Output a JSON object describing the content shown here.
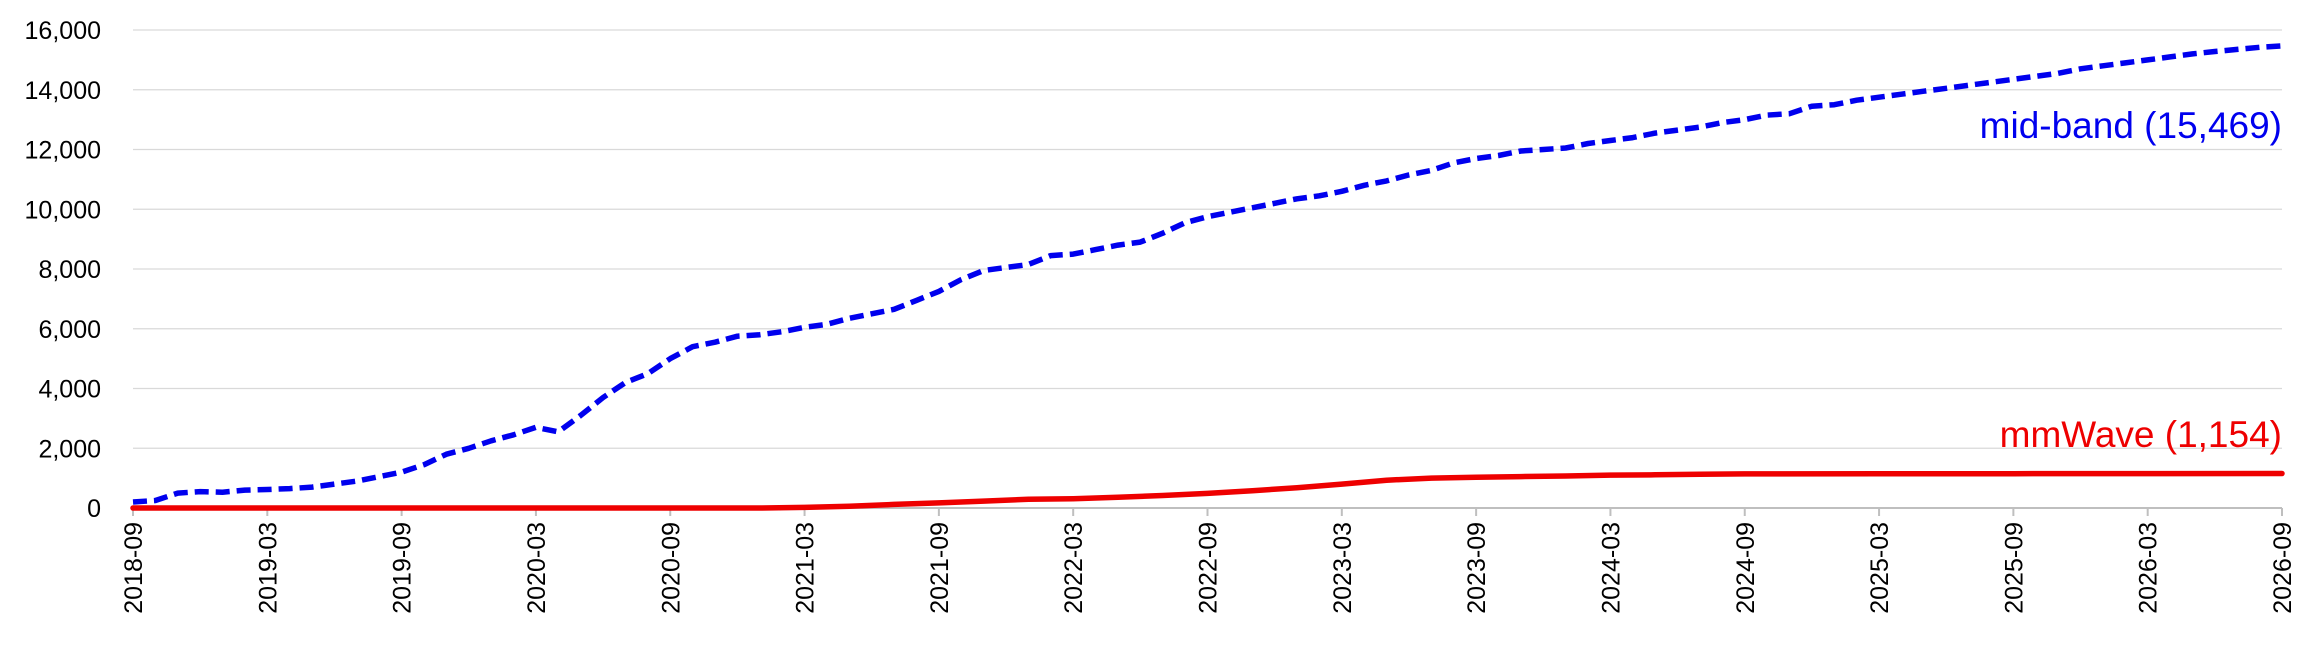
{
  "chart_data": {
    "type": "line",
    "title": "",
    "xlabel": "",
    "ylabel": "",
    "ylim": [
      0,
      16000
    ],
    "xlim": [
      "2018-09",
      "2026-09"
    ],
    "grid": "horizontal",
    "legend": "none",
    "y_ticks": [
      "0",
      "2,000",
      "4,000",
      "6,000",
      "8,000",
      "10,000",
      "12,000",
      "14,000",
      "16,000"
    ],
    "x_ticks": [
      "2018-09",
      "2019-03",
      "2019-09",
      "2020-03",
      "2020-09",
      "2021-03",
      "2021-09",
      "2022-03",
      "2022-09",
      "2023-03",
      "2023-09",
      "2024-03",
      "2024-09",
      "2025-03",
      "2025-09",
      "2026-03",
      "2026-09"
    ],
    "series": [
      {
        "label": "mid-band (15,469)",
        "color": "#0000ee",
        "style": "dashed",
        "points": [
          [
            "2018-09",
            200
          ],
          [
            "2018-10",
            250
          ],
          [
            "2018-11",
            500
          ],
          [
            "2018-12",
            550
          ],
          [
            "2019-01",
            530
          ],
          [
            "2019-02",
            600
          ],
          [
            "2019-03",
            620
          ],
          [
            "2019-04",
            650
          ],
          [
            "2019-05",
            700
          ],
          [
            "2019-06",
            800
          ],
          [
            "2019-07",
            900
          ],
          [
            "2019-08",
            1050
          ],
          [
            "2019-09",
            1200
          ],
          [
            "2019-10",
            1450
          ],
          [
            "2019-11",
            1800
          ],
          [
            "2019-12",
            2000
          ],
          [
            "2020-01",
            2250
          ],
          [
            "2020-02",
            2450
          ],
          [
            "2020-03",
            2700
          ],
          [
            "2020-04",
            2550
          ],
          [
            "2020-05",
            3100
          ],
          [
            "2020-06",
            3700
          ],
          [
            "2020-07",
            4200
          ],
          [
            "2020-08",
            4500
          ],
          [
            "2020-09",
            5000
          ],
          [
            "2020-10",
            5400
          ],
          [
            "2020-11",
            5550
          ],
          [
            "2020-12",
            5750
          ],
          [
            "2021-01",
            5800
          ],
          [
            "2021-02",
            5900
          ],
          [
            "2021-03",
            6050
          ],
          [
            "2021-04",
            6150
          ],
          [
            "2021-05",
            6350
          ],
          [
            "2021-06",
            6500
          ],
          [
            "2021-07",
            6650
          ],
          [
            "2021-08",
            6950
          ],
          [
            "2021-09",
            7250
          ],
          [
            "2021-10",
            7650
          ],
          [
            "2021-11",
            7950
          ],
          [
            "2021-12",
            8050
          ],
          [
            "2022-01",
            8150
          ],
          [
            "2022-02",
            8450
          ],
          [
            "2022-03",
            8500
          ],
          [
            "2022-04",
            8650
          ],
          [
            "2022-05",
            8800
          ],
          [
            "2022-06",
            8900
          ],
          [
            "2022-07",
            9200
          ],
          [
            "2022-08",
            9550
          ],
          [
            "2022-09",
            9750
          ],
          [
            "2022-10",
            9900
          ],
          [
            "2022-11",
            10050
          ],
          [
            "2022-12",
            10200
          ],
          [
            "2023-01",
            10350
          ],
          [
            "2023-02",
            10450
          ],
          [
            "2023-03",
            10600
          ],
          [
            "2023-04",
            10800
          ],
          [
            "2023-05",
            10950
          ],
          [
            "2023-06",
            11150
          ],
          [
            "2023-07",
            11300
          ],
          [
            "2023-08",
            11550
          ],
          [
            "2023-09",
            11700
          ],
          [
            "2023-10",
            11800
          ],
          [
            "2023-11",
            11950
          ],
          [
            "2023-12",
            12000
          ],
          [
            "2024-01",
            12050
          ],
          [
            "2024-02",
            12200
          ],
          [
            "2024-03",
            12300
          ],
          [
            "2024-04",
            12400
          ],
          [
            "2024-05",
            12550
          ],
          [
            "2024-06",
            12650
          ],
          [
            "2024-07",
            12750
          ],
          [
            "2024-08",
            12900
          ],
          [
            "2024-09",
            13000
          ],
          [
            "2024-10",
            13150
          ],
          [
            "2024-11",
            13200
          ],
          [
            "2024-12",
            13450
          ],
          [
            "2025-01",
            13500
          ],
          [
            "2025-02",
            13650
          ],
          [
            "2025-03",
            13750
          ],
          [
            "2025-04",
            13850
          ],
          [
            "2025-05",
            13950
          ],
          [
            "2025-06",
            14050
          ],
          [
            "2025-07",
            14150
          ],
          [
            "2025-08",
            14250
          ],
          [
            "2025-09",
            14350
          ],
          [
            "2025-10",
            14450
          ],
          [
            "2025-11",
            14550
          ],
          [
            "2025-12",
            14700
          ],
          [
            "2026-01",
            14800
          ],
          [
            "2026-02",
            14900
          ],
          [
            "2026-03",
            15000
          ],
          [
            "2026-04",
            15100
          ],
          [
            "2026-05",
            15200
          ],
          [
            "2026-06",
            15280
          ],
          [
            "2026-07",
            15350
          ],
          [
            "2026-08",
            15420
          ],
          [
            "2026-09",
            15469
          ]
        ]
      },
      {
        "label": "mmWave (1,154)",
        "color": "#ee0000",
        "style": "solid",
        "points": [
          [
            "2018-09",
            0
          ],
          [
            "2019-03",
            0
          ],
          [
            "2019-09",
            0
          ],
          [
            "2020-03",
            0
          ],
          [
            "2020-09",
            0
          ],
          [
            "2021-01",
            0
          ],
          [
            "2021-03",
            20
          ],
          [
            "2021-05",
            60
          ],
          [
            "2021-07",
            120
          ],
          [
            "2021-09",
            170
          ],
          [
            "2021-11",
            230
          ],
          [
            "2022-01",
            290
          ],
          [
            "2022-03",
            310
          ],
          [
            "2022-05",
            360
          ],
          [
            "2022-07",
            420
          ],
          [
            "2022-09",
            490
          ],
          [
            "2022-11",
            580
          ],
          [
            "2023-01",
            680
          ],
          [
            "2023-03",
            800
          ],
          [
            "2023-05",
            930
          ],
          [
            "2023-07",
            1000
          ],
          [
            "2023-09",
            1030
          ],
          [
            "2023-11",
            1050
          ],
          [
            "2024-01",
            1070
          ],
          [
            "2024-03",
            1100
          ],
          [
            "2024-05",
            1110
          ],
          [
            "2024-07",
            1130
          ],
          [
            "2024-09",
            1140
          ],
          [
            "2025-03",
            1145
          ],
          [
            "2025-09",
            1148
          ],
          [
            "2026-03",
            1150
          ],
          [
            "2026-09",
            1154
          ]
        ]
      }
    ]
  }
}
